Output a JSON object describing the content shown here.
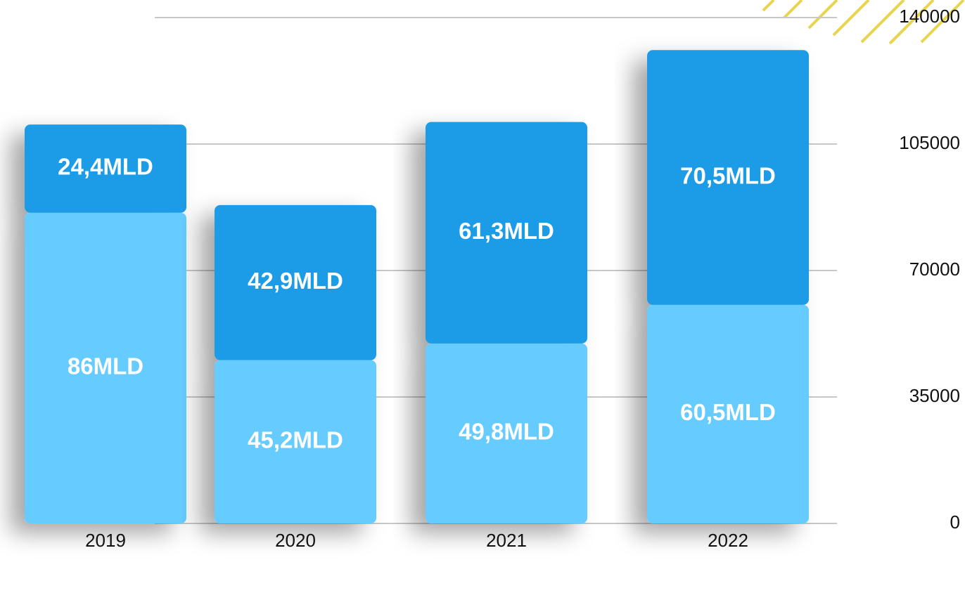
{
  "chart_data": {
    "type": "bar",
    "stacked": true,
    "categories": [
      "2019",
      "2020",
      "2021",
      "2022"
    ],
    "series": [
      {
        "color": "#66ccff",
        "values": [
          86000,
          45200,
          49800,
          60500
        ],
        "value_labels": [
          "86MLD",
          "45,2MLD",
          "49,8MLD",
          "60,5MLD"
        ]
      },
      {
        "color": "#1a9be6",
        "values": [
          24400,
          42900,
          61300,
          70500
        ],
        "value_labels": [
          "24,4MLD",
          "42,9MLD",
          "61,3MLD",
          "70,5MLD"
        ]
      }
    ],
    "ylim": [
      0,
      140000
    ],
    "yticks": [
      0,
      35000,
      70000,
      105000,
      140000
    ],
    "grid": true,
    "y_axis_side": "right"
  }
}
